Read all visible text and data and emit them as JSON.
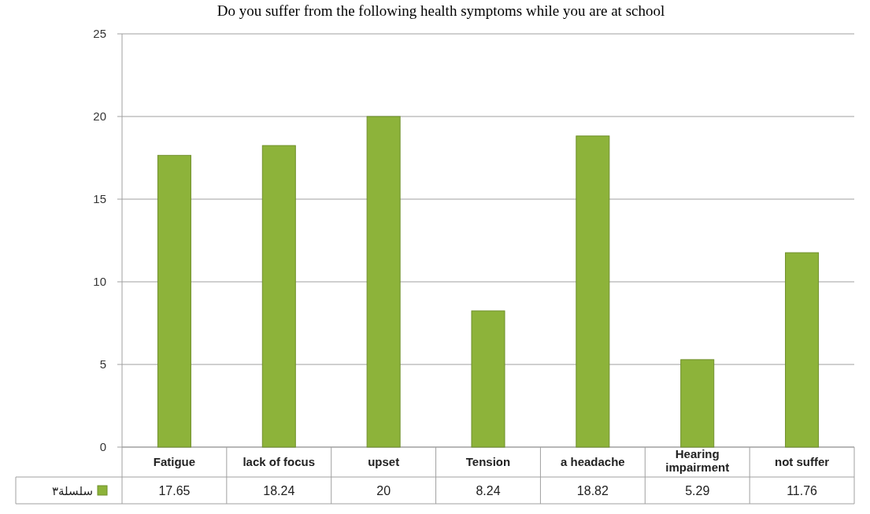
{
  "chart_data": {
    "type": "bar",
    "title": "Do you suffer from the following health symptoms while you are at school",
    "categories": [
      "Fatigue",
      "lack of focus",
      "upset",
      "Tension",
      "a headache",
      "Hearing impairment",
      "not suffer"
    ],
    "series": [
      {
        "name": "سلسلة٣",
        "color": "#8db33a",
        "values": [
          17.65,
          18.24,
          20,
          8.24,
          18.82,
          5.29,
          11.76
        ]
      }
    ],
    "ylim": [
      0,
      25
    ],
    "yticks": [
      0,
      5,
      10,
      15,
      20,
      25
    ],
    "grid": "y",
    "legend": "bottom left",
    "data_labels": true
  }
}
